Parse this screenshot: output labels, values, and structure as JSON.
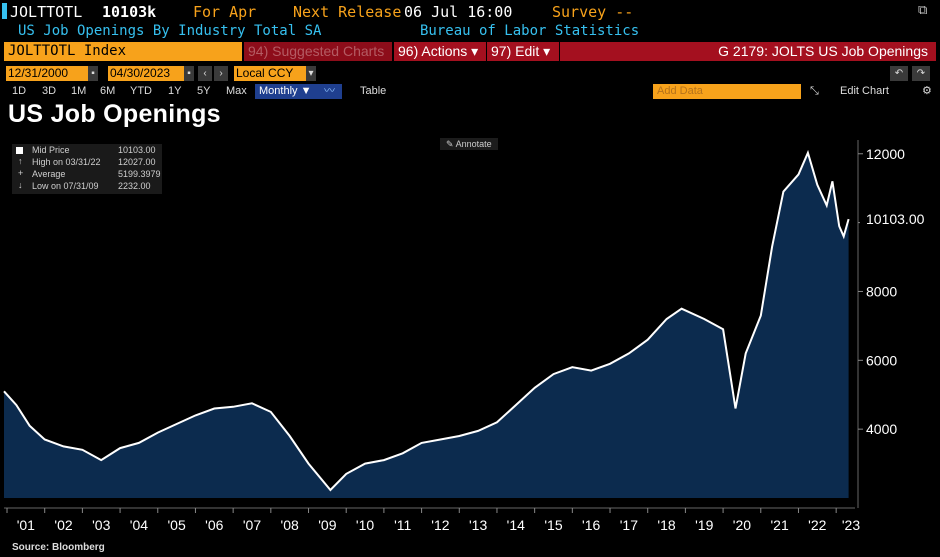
{
  "header": {
    "ticker": "JOLTTOTL",
    "last_value": "10103k",
    "for_label": "For Apr",
    "next_release_label": "Next Release",
    "next_release_value": "06 Jul 16:00",
    "survey_label": "Survey --",
    "description": "US Job Openings By Industry Total SA",
    "source_name": "Bureau of Labor Statistics"
  },
  "toolbar": {
    "security": "JOLTTOTL Index",
    "suggested": "94) Suggested Charts",
    "actions": "96) Actions ▾",
    "edit": "97) Edit ▾",
    "chart_id": "G 2179: JOLTS US Job Openings",
    "start_date": "12/31/2000",
    "end_date": "04/30/2023",
    "currency": "Local CCY",
    "ranges": [
      "1D",
      "3D",
      "1M",
      "6M",
      "YTD",
      "1Y",
      "5Y",
      "Max"
    ],
    "period": "Monthly ▼",
    "table_label": "Table",
    "add_data_placeholder": "Add Data",
    "edit_chart": "Edit Chart",
    "annotate": "Annotate"
  },
  "chart_title": "US Job Openings",
  "legend": {
    "mid_label": "Mid Price",
    "mid_value": "10103.00",
    "high_label": "High on 03/31/22",
    "high_value": "12027.00",
    "avg_label": "Average",
    "avg_value": "5199.3979",
    "low_label": "Low on 07/31/09",
    "low_value": "2232.00"
  },
  "last_price_tag": "10103.00",
  "source": "Source: Bloomberg",
  "colors": {
    "orange": "#f7a21b",
    "cyan": "#36c0ef",
    "red_bar": "#a4101f",
    "area_fill": "#0c2b4e",
    "line": "#ffffff",
    "selected_tab": "#1f3f8f"
  },
  "chart_data": {
    "type": "area",
    "title": "US Job Openings",
    "xlabel": "",
    "ylabel": "",
    "ylim": [
      2000,
      12400
    ],
    "yticks": [
      4000,
      6000,
      8000,
      10000,
      12000
    ],
    "ytick_labels": [
      "4000",
      "6000",
      "8000",
      "",
      "12000"
    ],
    "xtick_labels": [
      "'01",
      "'02",
      "'03",
      "'04",
      "'05",
      "'06",
      "'07",
      "'08",
      "'09",
      "'10",
      "'11",
      "'12",
      "'13",
      "'14",
      "'15",
      "'16",
      "'17",
      "'18",
      "'19",
      "'20",
      "'21",
      "'22",
      "'23"
    ],
    "grid": false,
    "series": [
      {
        "name": "JOLTTOTL Index",
        "points": [
          [
            2000.92,
            5100
          ],
          [
            2001.25,
            4700
          ],
          [
            2001.6,
            4100
          ],
          [
            2002.0,
            3700
          ],
          [
            2002.5,
            3500
          ],
          [
            2003.0,
            3400
          ],
          [
            2003.5,
            3100
          ],
          [
            2004.0,
            3450
          ],
          [
            2004.5,
            3600
          ],
          [
            2005.0,
            3900
          ],
          [
            2005.5,
            4150
          ],
          [
            2006.0,
            4400
          ],
          [
            2006.5,
            4600
          ],
          [
            2007.0,
            4650
          ],
          [
            2007.5,
            4750
          ],
          [
            2008.0,
            4500
          ],
          [
            2008.5,
            3800
          ],
          [
            2009.0,
            3000
          ],
          [
            2009.58,
            2232
          ],
          [
            2010.0,
            2700
          ],
          [
            2010.5,
            3000
          ],
          [
            2011.0,
            3100
          ],
          [
            2011.5,
            3300
          ],
          [
            2012.0,
            3600
          ],
          [
            2012.5,
            3700
          ],
          [
            2013.0,
            3800
          ],
          [
            2013.5,
            3950
          ],
          [
            2014.0,
            4200
          ],
          [
            2014.5,
            4700
          ],
          [
            2015.0,
            5200
          ],
          [
            2015.5,
            5600
          ],
          [
            2016.0,
            5800
          ],
          [
            2016.5,
            5700
          ],
          [
            2017.0,
            5900
          ],
          [
            2017.5,
            6200
          ],
          [
            2018.0,
            6600
          ],
          [
            2018.5,
            7200
          ],
          [
            2018.9,
            7500
          ],
          [
            2019.5,
            7200
          ],
          [
            2020.0,
            6900
          ],
          [
            2020.33,
            4600
          ],
          [
            2020.6,
            6200
          ],
          [
            2021.0,
            7300
          ],
          [
            2021.3,
            9300
          ],
          [
            2021.6,
            10900
          ],
          [
            2022.0,
            11400
          ],
          [
            2022.25,
            12027
          ],
          [
            2022.5,
            11100
          ],
          [
            2022.75,
            10500
          ],
          [
            2022.9,
            11200
          ],
          [
            2023.08,
            9900
          ],
          [
            2023.2,
            9600
          ],
          [
            2023.33,
            10103
          ]
        ]
      }
    ]
  }
}
